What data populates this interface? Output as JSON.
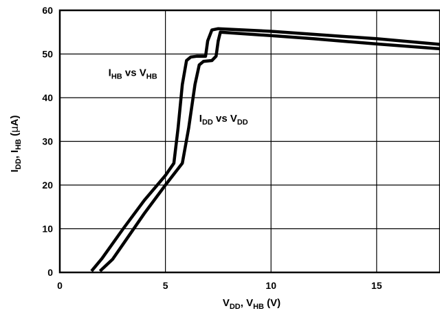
{
  "chart_data": {
    "type": "line",
    "xlabel": {
      "main1": "V",
      "sub1": "DD",
      "main2": ", V",
      "sub2": "HB",
      "main3": " (V)"
    },
    "ylabel": {
      "main1": "I",
      "sub1": "DD",
      "main2": ", I",
      "sub2": "HB",
      "main3": " (",
      "mu": "μ",
      "main4": "A)"
    },
    "xlim": [
      0,
      18
    ],
    "ylim": [
      0,
      60
    ],
    "x_ticks": [
      0,
      5,
      10,
      15
    ],
    "y_ticks": [
      0,
      10,
      20,
      30,
      40,
      50,
      60
    ],
    "grid": true,
    "annotations": [
      {
        "main1": "I",
        "sub1": "HB",
        "main2": " vs V",
        "sub2": "HB",
        "x": 2.3,
        "y": 45
      },
      {
        "main1": "I",
        "sub1": "DD",
        "main2": " vs V",
        "sub2": "DD",
        "x": 6.6,
        "y": 34.5
      }
    ],
    "series": [
      {
        "name": "IHB vs VHB",
        "points": [
          [
            1.5,
            0.3
          ],
          [
            2.0,
            3.2
          ],
          [
            3.0,
            10
          ],
          [
            4.0,
            16.5
          ],
          [
            5.0,
            22.2
          ],
          [
            5.4,
            25
          ],
          [
            5.6,
            33
          ],
          [
            5.8,
            43
          ],
          [
            6.0,
            48.5
          ],
          [
            6.2,
            49.3
          ],
          [
            6.5,
            49.5
          ],
          [
            6.9,
            49.5
          ],
          [
            7.0,
            53
          ],
          [
            7.2,
            55.5
          ],
          [
            7.5,
            55.8
          ],
          [
            10,
            55.2
          ],
          [
            12,
            54.5
          ],
          [
            15,
            53.5
          ],
          [
            18,
            52.2
          ]
        ]
      },
      {
        "name": "IDD vs VDD",
        "points": [
          [
            1.9,
            0.3
          ],
          [
            2.5,
            3
          ],
          [
            3.0,
            6.5
          ],
          [
            4.0,
            13.5
          ],
          [
            5.0,
            20
          ],
          [
            5.8,
            25
          ],
          [
            6.1,
            33
          ],
          [
            6.4,
            43
          ],
          [
            6.6,
            47.5
          ],
          [
            6.8,
            48.3
          ],
          [
            7.2,
            48.5
          ],
          [
            7.4,
            49.5
          ],
          [
            7.5,
            53
          ],
          [
            7.6,
            55
          ],
          [
            10,
            54.2
          ],
          [
            12,
            53.5
          ],
          [
            15,
            52.3
          ],
          [
            18,
            51.2
          ]
        ]
      }
    ]
  }
}
